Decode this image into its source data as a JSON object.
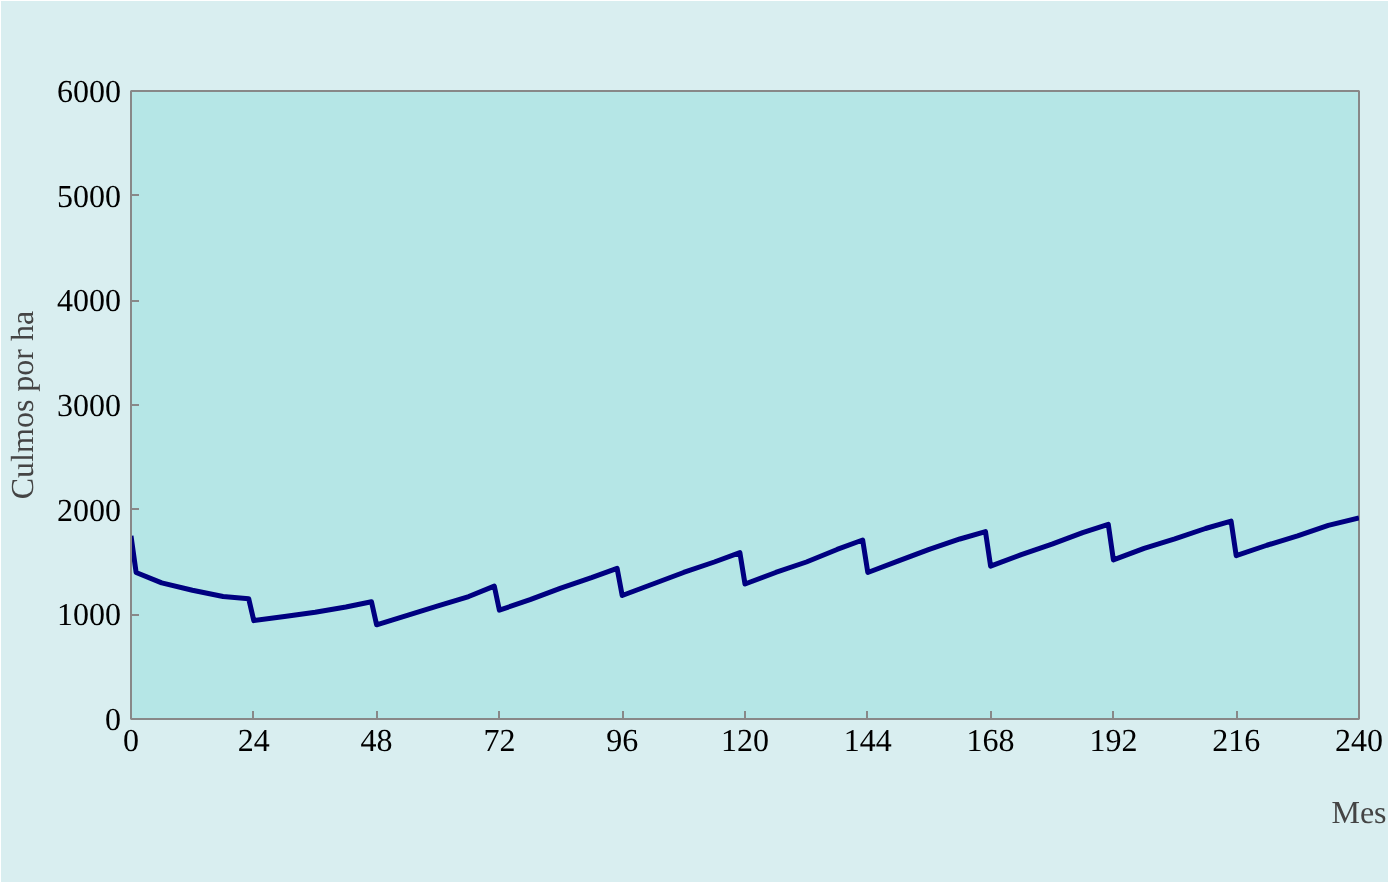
{
  "chart_data": {
    "type": "line",
    "xlabel": "Mes",
    "ylabel": "Culmos por ha",
    "x": [
      0,
      1,
      6,
      12,
      18,
      23,
      24,
      30,
      36,
      42,
      47,
      48,
      54,
      60,
      66,
      71,
      72,
      78,
      84,
      90,
      95,
      96,
      102,
      108,
      114,
      119,
      120,
      126,
      132,
      138,
      143,
      144,
      150,
      156,
      162,
      167,
      168,
      174,
      180,
      186,
      191,
      192,
      198,
      204,
      210,
      215,
      216,
      222,
      228,
      234,
      240
    ],
    "series": [
      {
        "color": "#000080",
        "values": [
          1750,
          1400,
          1300,
          1230,
          1170,
          1150,
          940,
          980,
          1020,
          1070,
          1120,
          900,
          990,
          1080,
          1170,
          1270,
          1040,
          1140,
          1250,
          1350,
          1440,
          1180,
          1290,
          1400,
          1500,
          1590,
          1290,
          1400,
          1500,
          1620,
          1710,
          1400,
          1510,
          1620,
          1720,
          1790,
          1460,
          1570,
          1670,
          1780,
          1860,
          1520,
          1630,
          1720,
          1820,
          1890,
          1560,
          1660,
          1750,
          1850,
          1920
        ]
      }
    ],
    "xlim": [
      0,
      240
    ],
    "ylim": [
      0,
      6000
    ],
    "xticks": [
      0,
      24,
      48,
      72,
      96,
      120,
      144,
      168,
      192,
      216,
      240
    ],
    "yticks": [
      0,
      1000,
      2000,
      3000,
      4000,
      5000,
      6000
    ],
    "grid": false,
    "line_style": "solid",
    "marker": "none"
  }
}
